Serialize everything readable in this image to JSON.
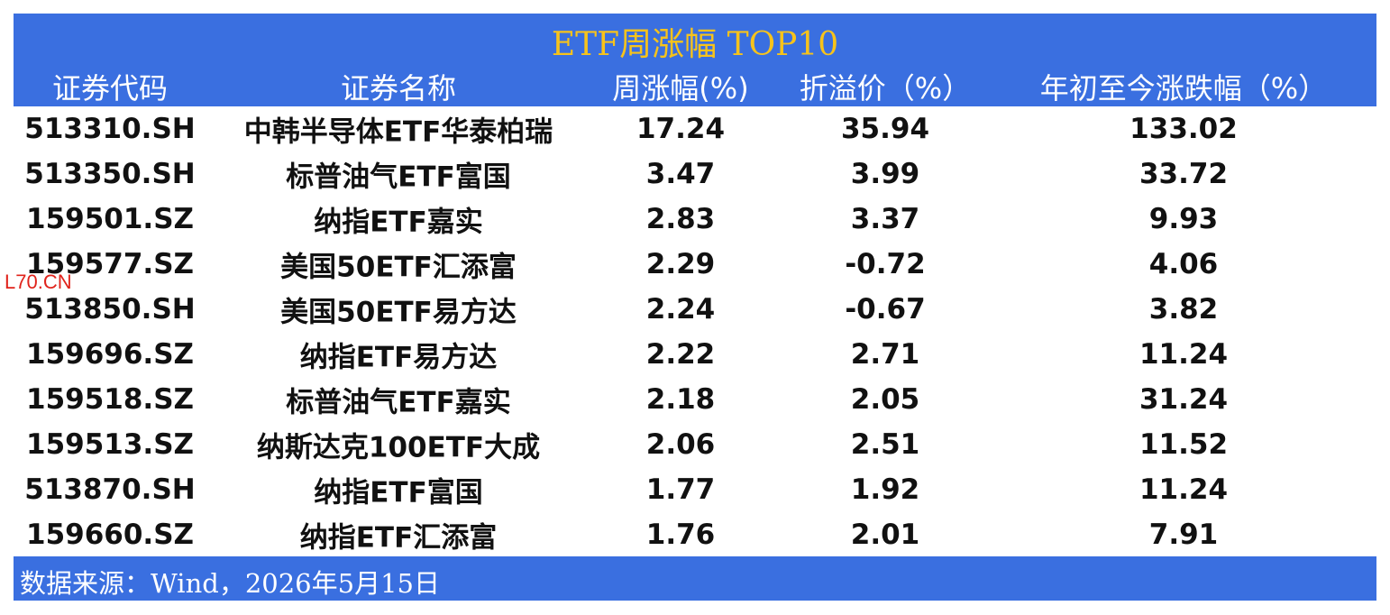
{
  "title": "ETF周涨幅 TOP10",
  "table": {
    "columns": [
      "证券代码",
      "证券名称",
      "周涨幅(%)",
      "折溢价（%）",
      "年初至今涨跌幅（%）"
    ],
    "rows": [
      [
        "513310.SH",
        "中韩半导体ETF华泰柏瑞",
        "17.24",
        "35.94",
        "133.02"
      ],
      [
        "513350.SH",
        "标普油气ETF富国",
        "3.47",
        "3.99",
        "33.72"
      ],
      [
        "159501.SZ",
        "纳指ETF嘉实",
        "2.83",
        "3.37",
        "9.93"
      ],
      [
        "159577.SZ",
        "美国50ETF汇添富",
        "2.29",
        "-0.72",
        "4.06"
      ],
      [
        "513850.SH",
        "美国50ETF易方达",
        "2.24",
        "-0.67",
        "3.82"
      ],
      [
        "159696.SZ",
        "纳指ETF易方达",
        "2.22",
        "2.71",
        "11.24"
      ],
      [
        "159518.SZ",
        "标普油气ETF嘉实",
        "2.18",
        "2.05",
        "31.24"
      ],
      [
        "159513.SZ",
        "纳斯达克100ETF大成",
        "2.06",
        "2.51",
        "11.52"
      ],
      [
        "513870.SH",
        "纳指ETF富国",
        "1.77",
        "1.92",
        "11.24"
      ],
      [
        "159660.SZ",
        "纳指ETF汇添富",
        "1.76",
        "2.01",
        "7.91"
      ]
    ]
  },
  "footer": "数据来源：Wind，2026年5月15日",
  "watermark": "L70.CN"
}
